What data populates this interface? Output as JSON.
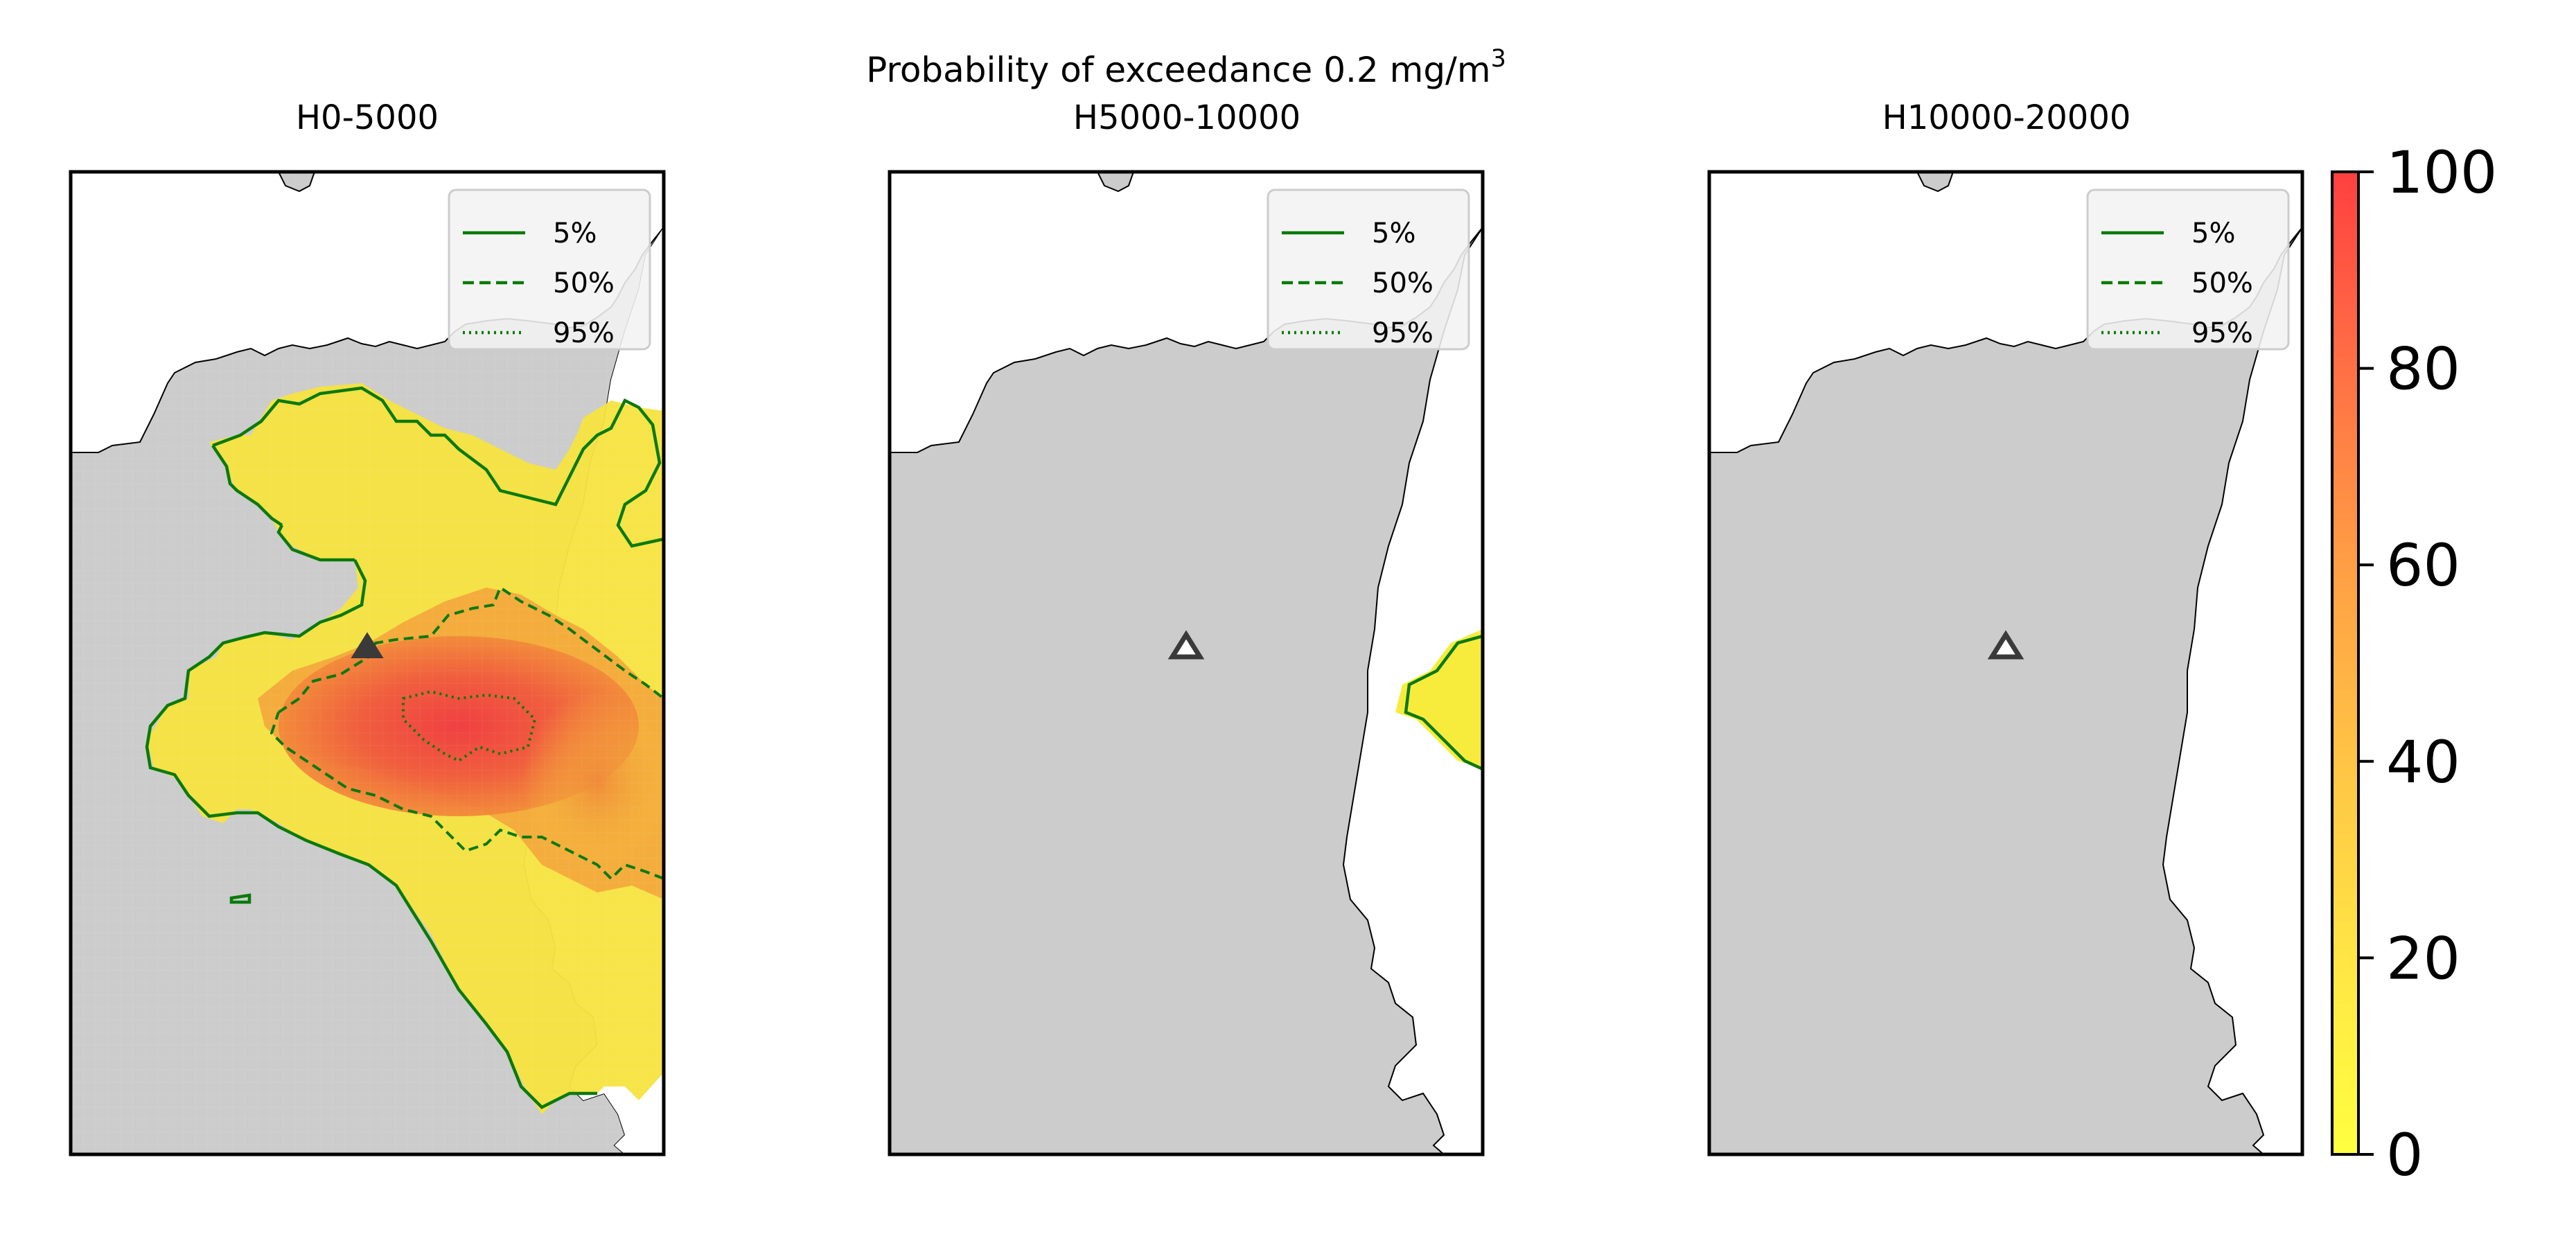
{
  "figure": {
    "suptitle_prefix": "Probability of exceedance 0.2 mg/m",
    "suptitle_sup": "3"
  },
  "panels": [
    {
      "title": "H0-5000",
      "has_plume": true
    },
    {
      "title": "H5000-10000",
      "has_plume": true
    },
    {
      "title": "H10000-20000",
      "has_plume": false
    }
  ],
  "legend": {
    "entries": [
      {
        "label": "5%",
        "linestyle": "solid"
      },
      {
        "label": "50%",
        "linestyle": "dashed"
      },
      {
        "label": "95%",
        "linestyle": "dotted"
      }
    ],
    "line_color": "#007a00"
  },
  "colorbar": {
    "ticks": [
      "0",
      "20",
      "40",
      "60",
      "80",
      "100"
    ],
    "range": [
      0,
      100
    ],
    "colormap": [
      "#ffff40",
      "#ff4040"
    ]
  },
  "map_style": {
    "land_color": "#cccccc",
    "sea_color": "#ffffff",
    "vent_marker": "triangle",
    "vent_color": "#444444"
  }
}
